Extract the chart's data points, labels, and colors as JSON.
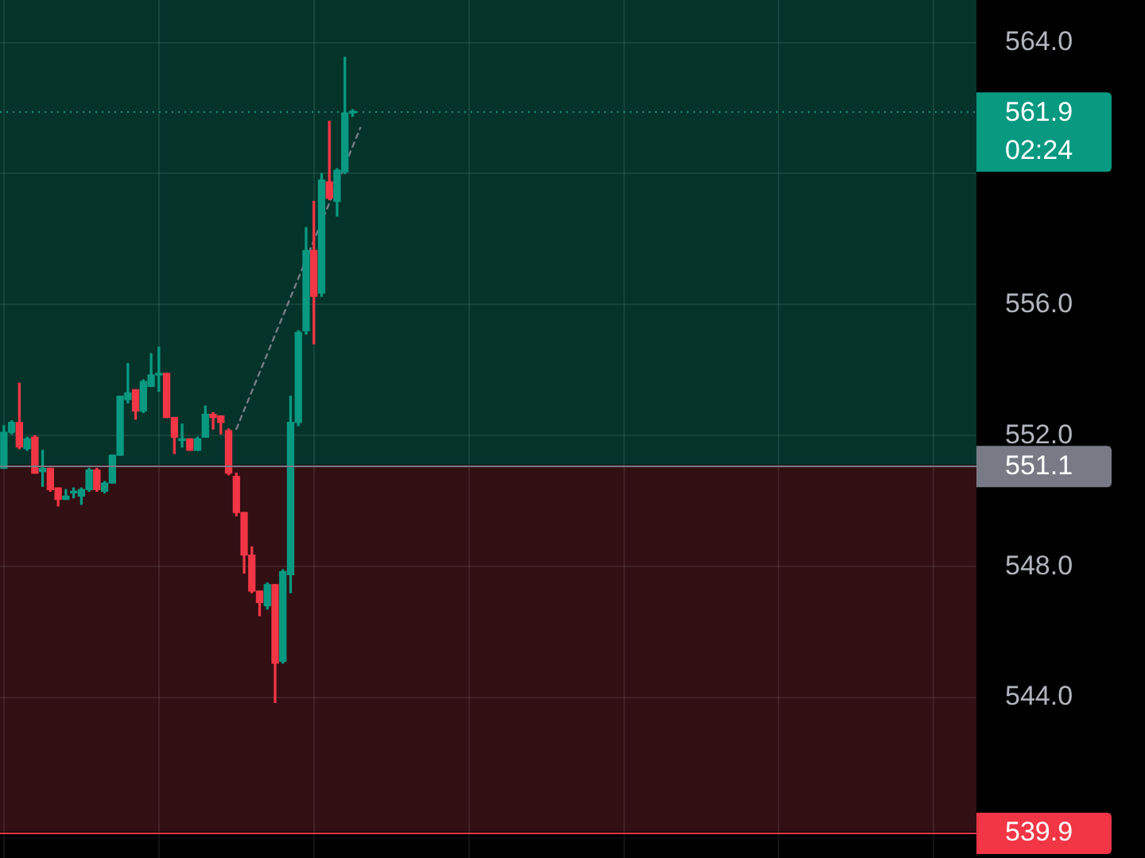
{
  "chart_data": {
    "type": "candlestick",
    "categories": [
      null,
      null,
      null,
      null,
      null,
      null,
      null,
      null,
      null,
      null,
      null,
      null,
      null,
      null,
      null,
      null,
      null,
      null,
      null,
      null,
      null,
      null,
      null,
      null,
      null,
      null,
      null,
      null,
      null,
      null,
      null,
      null,
      null,
      null,
      null,
      null,
      null,
      null,
      null,
      null,
      null,
      null,
      null,
      null,
      null,
      null,
      null,
      null,
      null,
      null,
      null,
      null,
      null,
      null,
      null,
      null,
      null,
      null,
      null,
      null,
      null,
      null,
      null,
      null,
      null,
      null,
      null,
      null,
      null,
      null,
      null,
      null,
      null,
      null,
      null,
      null,
      null,
      null,
      null,
      null,
      null,
      null,
      null,
      null,
      null,
      null,
      null,
      null,
      null,
      null,
      null,
      null,
      null,
      null,
      null,
      null,
      null,
      null,
      null,
      null,
      null,
      null,
      null,
      null,
      null,
      null,
      null,
      null,
      null,
      null,
      null,
      null,
      null,
      null,
      null,
      null,
      null,
      null,
      null,
      null,
      null,
      null,
      null,
      null,
      null,
      null
    ],
    "ohlc": [
      [
        551.0,
        552.3,
        551.0,
        552.1
      ],
      [
        552.1,
        552.45,
        552.05,
        552.4
      ],
      [
        552.4,
        553.6,
        551.6,
        551.65
      ],
      [
        551.6,
        551.95,
        551.55,
        551.9
      ],
      [
        551.95,
        552.0,
        550.85,
        550.85
      ],
      [
        550.9,
        551.55,
        550.45,
        551.0
      ],
      [
        551.0,
        551.0,
        550.3,
        550.35
      ],
      [
        550.4,
        550.4,
        549.85,
        550.05
      ],
      [
        550.05,
        550.35,
        550.05,
        550.15
      ],
      [
        550.25,
        550.4,
        550.1,
        550.3
      ],
      [
        550.15,
        550.4,
        549.9,
        550.35
      ],
      [
        550.35,
        551.0,
        550.3,
        550.95
      ],
      [
        550.95,
        551.0,
        550.3,
        550.35
      ],
      [
        550.3,
        550.6,
        550.25,
        550.55
      ],
      [
        550.55,
        551.4,
        550.55,
        551.4
      ],
      [
        551.4,
        553.2,
        551.4,
        553.2
      ],
      [
        553.1,
        554.2,
        553.0,
        553.3
      ],
      [
        553.4,
        553.4,
        552.5,
        552.75
      ],
      [
        552.75,
        553.7,
        552.7,
        553.65
      ],
      [
        553.5,
        554.5,
        553.5,
        553.85
      ],
      [
        553.85,
        554.7,
        553.35,
        553.9
      ],
      [
        553.9,
        553.9,
        552.55,
        552.55
      ],
      [
        552.55,
        552.55,
        551.45,
        551.95
      ],
      [
        551.85,
        552.35,
        551.65,
        551.9
      ],
      [
        551.9,
        551.9,
        551.55,
        551.55
      ],
      [
        551.55,
        551.95,
        551.55,
        551.9
      ],
      [
        551.95,
        552.9,
        551.95,
        552.65
      ],
      [
        552.65,
        552.7,
        552.2,
        552.55
      ],
      [
        552.6,
        552.6,
        552.05,
        552.4
      ],
      [
        552.15,
        552.2,
        550.8,
        550.85
      ],
      [
        550.75,
        550.85,
        549.55,
        549.65
      ],
      [
        549.65,
        549.65,
        547.8,
        548.35
      ],
      [
        548.35,
        548.6,
        547.2,
        547.25
      ],
      [
        547.25,
        547.25,
        546.5,
        546.9
      ],
      [
        546.8,
        547.5,
        546.7,
        547.45
      ],
      [
        547.45,
        547.45,
        543.85,
        545.05
      ],
      [
        545.1,
        547.9,
        545.05,
        547.85
      ],
      [
        547.75,
        553.2,
        547.2,
        552.4
      ],
      [
        552.4,
        555.2,
        552.3,
        555.15
      ],
      [
        555.2,
        558.35,
        555.1,
        557.65
      ],
      [
        557.65,
        559.15,
        554.8,
        556.25
      ],
      [
        556.35,
        560.0,
        556.25,
        559.8
      ],
      [
        559.75,
        561.6,
        559.2,
        559.25
      ],
      [
        559.15,
        560.15,
        558.7,
        560.1
      ],
      [
        560.05,
        563.55,
        560.0,
        561.85
      ],
      [
        561.85,
        561.95,
        561.75,
        561.9
      ],
      null,
      null,
      null,
      null,
      null,
      null,
      null,
      null,
      null,
      null,
      null,
      null,
      null,
      null,
      null,
      null,
      null,
      null,
      null,
      null,
      null,
      null,
      null,
      null,
      null,
      null,
      null,
      null,
      null,
      null,
      null,
      null,
      null,
      null,
      null,
      null,
      null,
      null,
      null,
      null,
      null,
      null,
      null,
      null,
      null,
      null,
      null,
      null,
      null,
      null,
      null,
      null,
      null,
      null,
      null,
      null,
      null,
      null,
      null,
      null,
      null,
      null,
      null,
      null,
      null,
      null,
      null,
      null,
      null,
      null,
      null,
      null,
      null,
      null,
      null,
      null,
      null,
      null,
      null,
      null
    ],
    "colors": [
      "#089981",
      "#089981",
      "#f23645",
      "#089981",
      "#f23645",
      "#089981",
      "#f23645",
      "#f23645",
      "#089981",
      "#089981",
      "#089981",
      "#089981",
      "#f23645",
      "#089981",
      "#089981",
      "#089981",
      "#089981",
      "#f23645",
      "#089981",
      "#089981",
      "#089981",
      "#f23645",
      "#f23645",
      "#089981",
      "#f23645",
      "#089981",
      "#089981",
      "#f23645",
      "#f23645",
      "#f23645",
      "#f23645",
      "#f23645",
      "#f23645",
      "#f23645",
      "#089981",
      "#f23645",
      "#089981",
      "#089981",
      "#089981",
      "#089981",
      "#f23645",
      "#089981",
      "#f23645",
      "#089981",
      "#089981",
      "#089981",
      null,
      null,
      null,
      null,
      null,
      null,
      null,
      null,
      null,
      null,
      null,
      null,
      null,
      null,
      null,
      null,
      null,
      null,
      null,
      null,
      null,
      null,
      null,
      null,
      null,
      null,
      null,
      null,
      null,
      null,
      null,
      null,
      null,
      null,
      null,
      null,
      null,
      null,
      null,
      null,
      null,
      null,
      null,
      null,
      null,
      null,
      null,
      null,
      null,
      null,
      null,
      null,
      null,
      null,
      null,
      null,
      null,
      null,
      null,
      null,
      null,
      null,
      null,
      null,
      null,
      null,
      null,
      null,
      null,
      null,
      null,
      null,
      null,
      null,
      null,
      null,
      null,
      null,
      null,
      null
    ],
    "series": [
      {
        "type": "line",
        "color": "#787b86",
        "line_style": "dashed",
        "values": [
          null,
          null,
          null,
          null,
          null,
          null,
          null,
          null,
          null,
          null,
          null,
          null,
          null,
          null,
          null,
          null,
          null,
          null,
          null,
          null,
          null,
          null,
          null,
          null,
          null,
          null,
          null,
          null,
          null,
          null,
          552.2,
          null,
          null,
          null,
          null,
          null,
          null,
          null,
          null,
          null,
          null,
          null,
          null,
          null,
          null,
          null,
          561.4,
          null,
          null,
          null,
          null,
          null,
          null,
          null,
          null,
          null,
          null,
          null,
          null,
          null,
          null,
          null,
          null,
          null,
          null,
          null,
          null,
          null,
          null,
          null,
          null,
          null,
          null,
          null,
          null,
          null,
          null,
          null,
          null,
          null,
          null,
          null,
          null,
          null,
          null,
          null,
          null,
          null,
          null,
          null,
          null,
          null,
          null,
          null,
          null,
          null,
          null,
          null,
          null,
          null,
          null,
          null,
          null,
          null,
          null,
          null,
          null,
          null,
          null,
          null,
          null,
          null,
          null,
          null,
          null,
          null,
          null,
          null,
          null,
          null,
          null,
          null,
          null,
          null,
          null,
          null
        ]
      }
    ],
    "ylim": [
      539.1,
      565.3
    ],
    "yticks": [
      {
        "value": 544,
        "label": "544.0"
      },
      {
        "value": 548,
        "label": "548.0"
      },
      {
        "value": 552,
        "label": "552.0"
      },
      {
        "value": 556,
        "label": "556.0"
      },
      {
        "value": 560,
        "label": null
      },
      {
        "value": 564,
        "label": "564.0"
      }
    ],
    "grid": true,
    "tick_labels": "y",
    "bands": [
      {
        "axis": "y",
        "from": 551.1,
        "to": 565.3,
        "color": "#04332a"
      },
      {
        "axis": "y",
        "from": 539.9,
        "to": 551.1,
        "color": "#310f13"
      }
    ],
    "ref_lines": [
      {
        "axis": "y",
        "value": 561.9,
        "label": "561.9",
        "color": "#089981",
        "line_style": "dotted"
      },
      {
        "axis": "y",
        "value": 551.1,
        "label": "551.1",
        "color": "#787b86"
      },
      {
        "axis": "y",
        "value": 539.9,
        "label": "539.9",
        "color": "#f23645"
      }
    ],
    "annotations": [
      "02:24"
    ]
  }
}
